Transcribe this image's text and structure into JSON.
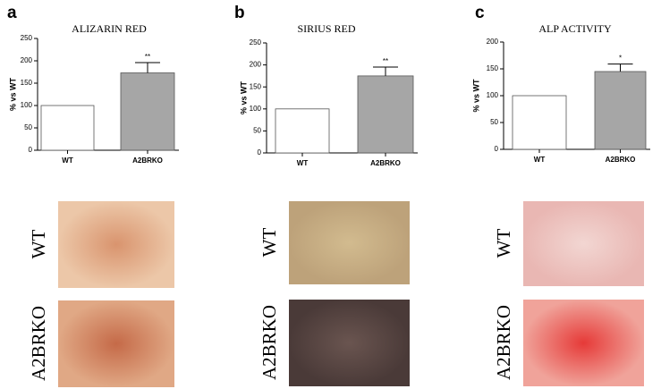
{
  "chart_data": [
    {
      "type": "bar",
      "panel": "a",
      "title": "ALIZARIN RED",
      "ylabel": "% vs WT",
      "categories": [
        "WT",
        "A2BRKO"
      ],
      "values": [
        100,
        173
      ],
      "errors": [
        null,
        23
      ],
      "annotations": [
        null,
        "**"
      ],
      "colors": [
        "#ffffff",
        "#a6a6a6"
      ],
      "ylim": [
        0,
        250
      ],
      "yticks": [
        0,
        50,
        100,
        150,
        200,
        250
      ]
    },
    {
      "type": "bar",
      "panel": "b",
      "title": "SIRIUS RED",
      "ylabel": "% vs WT",
      "categories": [
        "WT",
        "A2BRKO"
      ],
      "values": [
        100,
        175
      ],
      "errors": [
        null,
        20
      ],
      "annotations": [
        null,
        "**"
      ],
      "colors": [
        "#ffffff",
        "#a6a6a6"
      ],
      "ylim": [
        0,
        250
      ],
      "yticks": [
        0,
        50,
        100,
        150,
        200,
        250
      ]
    },
    {
      "type": "bar",
      "panel": "c",
      "title": "ALP ACTIVITY",
      "ylabel": "% vs WT",
      "categories": [
        "WT",
        "A2BRKO"
      ],
      "values": [
        100,
        145
      ],
      "errors": [
        null,
        14
      ],
      "annotations": [
        null,
        "*"
      ],
      "colors": [
        "#ffffff",
        "#a6a6a6"
      ],
      "ylim": [
        0,
        200
      ],
      "yticks": [
        0,
        50,
        100,
        150,
        200
      ]
    }
  ],
  "micrographs": [
    {
      "rows": [
        "WT",
        "A2BRKO"
      ]
    },
    {
      "rows": [
        "WT",
        "A2BRKO"
      ]
    },
    {
      "rows": [
        "WT",
        "A2BRKO"
      ]
    }
  ]
}
